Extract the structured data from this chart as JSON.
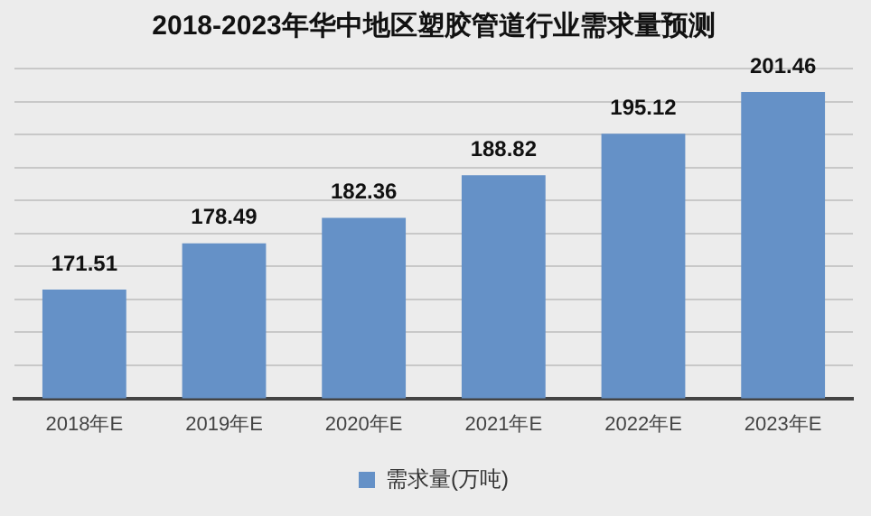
{
  "chart_data": {
    "type": "bar",
    "title": "2018-2023年华中地区塑胶管道行业需求量预测",
    "categories": [
      "2018年E",
      "2019年E",
      "2020年E",
      "2021年E",
      "2022年E",
      "2023年E"
    ],
    "series": [
      {
        "name": "需求量(万吨)",
        "color": "#6591c7",
        "values": [
          171.51,
          178.49,
          182.36,
          188.82,
          195.12,
          201.46
        ]
      }
    ],
    "ylim": [
      155,
      205
    ],
    "yticks": [
      {
        "value": 155,
        "label": null
      },
      {
        "value": 160,
        "label": null
      },
      {
        "value": 165,
        "label": null
      },
      {
        "value": 170,
        "label": null
      },
      {
        "value": 175,
        "label": null
      },
      {
        "value": 180,
        "label": null
      },
      {
        "value": 185,
        "label": null
      },
      {
        "value": 190,
        "label": null
      },
      {
        "value": 195,
        "label": null
      },
      {
        "value": 200,
        "label": null
      },
      {
        "value": 205,
        "label": null
      }
    ],
    "tick_labels": "x",
    "grid": "y",
    "legend": "bottom",
    "data_labels": true
  }
}
